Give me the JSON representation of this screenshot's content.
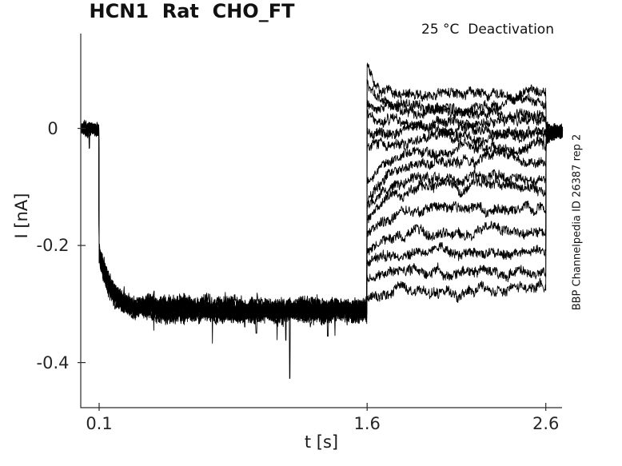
{
  "chart_data": {
    "type": "line",
    "title": "HCN1  Rat  CHO_FT",
    "condition_label": "25 °C  Deactivation",
    "side_label": "BBP Channelpedia ID 26387 rep 2",
    "xlabel": "t [s]",
    "ylabel": "I [nA]",
    "xlim": [
      -0.003,
      2.691
    ],
    "ylim": [
      -0.477,
      0.162
    ],
    "xticks": [
      {
        "value": 0.1,
        "label": "0.1"
      },
      {
        "value": 1.6,
        "label": "1.6"
      },
      {
        "value": 2.6,
        "label": "2.6"
      }
    ],
    "yticks": [
      {
        "value": 0,
        "label": "0"
      },
      {
        "value": -0.2,
        "label": "-0.2"
      },
      {
        "value": -0.4,
        "label": "-0.4"
      }
    ],
    "grid": false,
    "legend": false,
    "background_color": "#ffffff",
    "line_color": "#000000",
    "axis_color": "#2a2a2a",
    "protocol": {
      "t_start": 0.0,
      "t_step1": 0.1,
      "t_step2": 1.6,
      "t_end": 2.6,
      "t_stop": 2.695,
      "baseline_nA": 0.0,
      "activation": {
        "instant_nA": -0.21,
        "steady_nA": -0.311,
        "tau_s": 0.07
      },
      "sweeps": [
        {
          "start_nA": 0.103,
          "end_nA": 0.059,
          "tau_s": 0.035
        },
        {
          "start_nA": 0.079,
          "end_nA": 0.042,
          "tau_s": 0.045
        },
        {
          "start_nA": 0.052,
          "end_nA": 0.026,
          "tau_s": 0.05
        },
        {
          "start_nA": 0.025,
          "end_nA": 0.011,
          "tau_s": 0.06
        },
        {
          "start_nA": -0.011,
          "end_nA": -0.004,
          "tau_s": 0.09
        },
        {
          "start_nA": -0.049,
          "end_nA": -0.016,
          "tau_s": 0.1
        },
        {
          "start_nA": -0.088,
          "end_nA": -0.033,
          "tau_s": 0.11
        },
        {
          "start_nA": -0.123,
          "end_nA": -0.052,
          "tau_s": 0.12
        },
        {
          "start_nA": -0.148,
          "end_nA": -0.085,
          "tau_s": 0.12
        },
        {
          "start_nA": -0.164,
          "end_nA": -0.097,
          "tau_s": 0.12
        },
        {
          "start_nA": -0.181,
          "end_nA": -0.137,
          "tau_s": 0.12
        },
        {
          "start_nA": -0.201,
          "end_nA": -0.177,
          "tau_s": 0.12
        },
        {
          "start_nA": -0.226,
          "end_nA": -0.211,
          "tau_s": 0.12
        },
        {
          "start_nA": -0.253,
          "end_nA": -0.244,
          "tau_s": 0.12
        },
        {
          "start_nA": -0.285,
          "end_nA": -0.278,
          "tau_s": 0.12
        }
      ],
      "return": {
        "steady_nA": -0.004,
        "tau_s": 0.02
      },
      "noise_nA": {
        "baseline": 0.007,
        "activation": 0.011,
        "deactivation": 0.0075,
        "tail": 0.006
      },
      "artifact_spikes": [
        {
          "t_s": 0.045,
          "I_nA": -0.034
        },
        {
          "t_s": 0.98,
          "I_nA": -0.35
        },
        {
          "t_s": 1.145,
          "I_nA": -0.362
        },
        {
          "t_s": 1.167,
          "I_nA": -0.427
        },
        {
          "t_s": 1.38,
          "I_nA": -0.355
        }
      ]
    }
  }
}
